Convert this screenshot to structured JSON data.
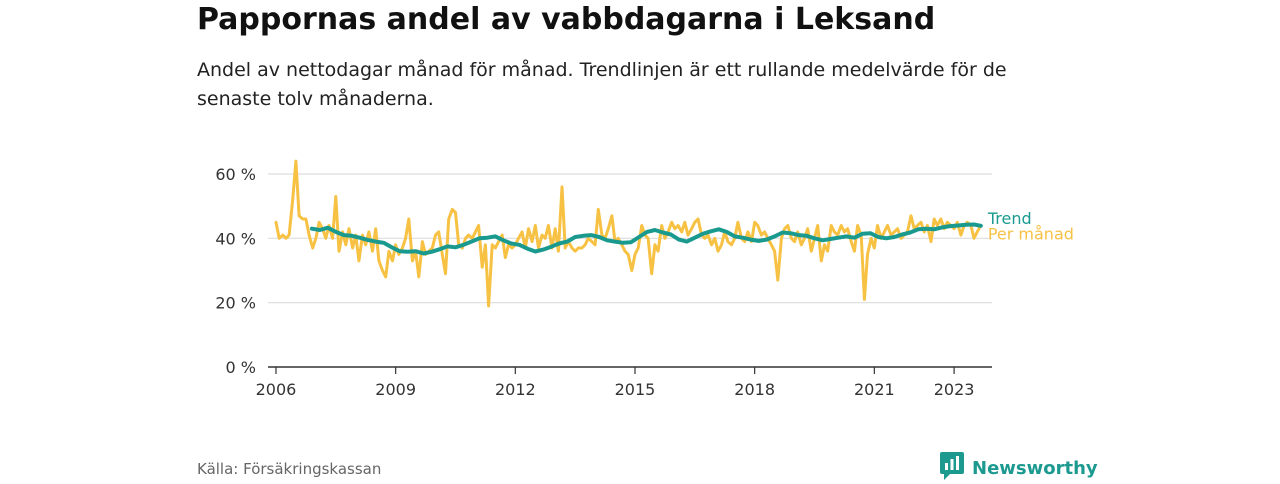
{
  "title": "Pappornas andel av vabbdagarna i Leksand",
  "subtitle": "Andel av nettodagar månad för månad. Trendlinjen är ett rullande medelvärde för de senaste tolv månaderna.",
  "source": "Källa: Försäkringskassan",
  "brand": {
    "name": "Newsworthy",
    "icon": "newsworthy-chart-icon",
    "color": "#1c9a90"
  },
  "chart_data": {
    "type": "line",
    "title": "Pappornas andel av vabbdagarna i Leksand",
    "xlabel": "",
    "ylabel": "",
    "x_range": [
      2005.8,
      2023.95
    ],
    "ylim": [
      0,
      60
    ],
    "x_ticks": [
      {
        "value": 2006,
        "label": "2006"
      },
      {
        "value": 2009,
        "label": "2009"
      },
      {
        "value": 2012,
        "label": "2012"
      },
      {
        "value": 2015,
        "label": "2015"
      },
      {
        "value": 2018,
        "label": "2018"
      },
      {
        "value": 2021,
        "label": "2021"
      },
      {
        "value": 2023,
        "label": "2023"
      }
    ],
    "y_ticks": [
      {
        "value": 0,
        "label": "0 %"
      },
      {
        "value": 20,
        "label": "20 %"
      },
      {
        "value": 40,
        "label": "40 %"
      },
      {
        "value": 60,
        "label": "60 %"
      }
    ],
    "grid": true,
    "legend": "inline labels at line ends",
    "series": [
      {
        "name": "Per månad",
        "color": "#f7c244",
        "points": [
          [
            2006.0,
            45
          ],
          [
            2006.08,
            40
          ],
          [
            2006.17,
            41
          ],
          [
            2006.25,
            40
          ],
          [
            2006.33,
            41
          ],
          [
            2006.42,
            52
          ],
          [
            2006.5,
            64
          ],
          [
            2006.58,
            47
          ],
          [
            2006.67,
            46
          ],
          [
            2006.75,
            46
          ],
          [
            2006.83,
            41
          ],
          [
            2006.92,
            37
          ],
          [
            2007.0,
            40
          ],
          [
            2007.08,
            45
          ],
          [
            2007.17,
            43
          ],
          [
            2007.25,
            40
          ],
          [
            2007.33,
            44
          ],
          [
            2007.42,
            40
          ],
          [
            2007.5,
            53
          ],
          [
            2007.58,
            36
          ],
          [
            2007.67,
            42
          ],
          [
            2007.75,
            38
          ],
          [
            2007.83,
            43
          ],
          [
            2007.92,
            37
          ],
          [
            2008.0,
            41
          ],
          [
            2008.08,
            33
          ],
          [
            2008.17,
            41
          ],
          [
            2008.25,
            38
          ],
          [
            2008.33,
            42
          ],
          [
            2008.42,
            36
          ],
          [
            2008.5,
            43
          ],
          [
            2008.58,
            33
          ],
          [
            2008.67,
            30
          ],
          [
            2008.75,
            28
          ],
          [
            2008.83,
            36
          ],
          [
            2008.92,
            33
          ],
          [
            2009.0,
            38
          ],
          [
            2009.08,
            35
          ],
          [
            2009.17,
            37
          ],
          [
            2009.25,
            40
          ],
          [
            2009.33,
            46
          ],
          [
            2009.42,
            33
          ],
          [
            2009.5,
            36
          ],
          [
            2009.58,
            28
          ],
          [
            2009.67,
            39
          ],
          [
            2009.75,
            35
          ],
          [
            2009.83,
            36
          ],
          [
            2009.92,
            37
          ],
          [
            2010.0,
            41
          ],
          [
            2010.08,
            42
          ],
          [
            2010.17,
            35
          ],
          [
            2010.25,
            29
          ],
          [
            2010.33,
            46
          ],
          [
            2010.42,
            49
          ],
          [
            2010.5,
            48
          ],
          [
            2010.58,
            38
          ],
          [
            2010.67,
            37
          ],
          [
            2010.75,
            40
          ],
          [
            2010.83,
            41
          ],
          [
            2010.92,
            40
          ],
          [
            2011.0,
            42
          ],
          [
            2011.08,
            44
          ],
          [
            2011.17,
            31
          ],
          [
            2011.25,
            38
          ],
          [
            2011.33,
            19
          ],
          [
            2011.42,
            38
          ],
          [
            2011.5,
            37
          ],
          [
            2011.58,
            39
          ],
          [
            2011.67,
            41
          ],
          [
            2011.75,
            34
          ],
          [
            2011.83,
            38
          ],
          [
            2011.92,
            37
          ],
          [
            2012.0,
            38
          ],
          [
            2012.08,
            40
          ],
          [
            2012.17,
            42
          ],
          [
            2012.25,
            37
          ],
          [
            2012.33,
            43
          ],
          [
            2012.42,
            39
          ],
          [
            2012.5,
            44
          ],
          [
            2012.58,
            37
          ],
          [
            2012.67,
            41
          ],
          [
            2012.75,
            40
          ],
          [
            2012.83,
            44
          ],
          [
            2012.92,
            37
          ],
          [
            2013.0,
            43
          ],
          [
            2013.08,
            36
          ],
          [
            2013.17,
            56
          ],
          [
            2013.25,
            37
          ],
          [
            2013.33,
            39
          ],
          [
            2013.42,
            37
          ],
          [
            2013.5,
            36
          ],
          [
            2013.58,
            37
          ],
          [
            2013.67,
            37
          ],
          [
            2013.75,
            38
          ],
          [
            2013.83,
            40
          ],
          [
            2013.92,
            39
          ],
          [
            2014.0,
            38
          ],
          [
            2014.08,
            49
          ],
          [
            2014.17,
            41
          ],
          [
            2014.25,
            40
          ],
          [
            2014.33,
            43
          ],
          [
            2014.42,
            47
          ],
          [
            2014.5,
            39
          ],
          [
            2014.58,
            40
          ],
          [
            2014.67,
            38
          ],
          [
            2014.75,
            36
          ],
          [
            2014.83,
            35
          ],
          [
            2014.92,
            30
          ],
          [
            2015.0,
            35
          ],
          [
            2015.08,
            37
          ],
          [
            2015.17,
            44
          ],
          [
            2015.25,
            41
          ],
          [
            2015.33,
            40
          ],
          [
            2015.42,
            29
          ],
          [
            2015.5,
            38
          ],
          [
            2015.58,
            36
          ],
          [
            2015.67,
            44
          ],
          [
            2015.75,
            40
          ],
          [
            2015.83,
            42
          ],
          [
            2015.92,
            45
          ],
          [
            2016.0,
            43
          ],
          [
            2016.08,
            44
          ],
          [
            2016.17,
            42
          ],
          [
            2016.25,
            45
          ],
          [
            2016.33,
            41
          ],
          [
            2016.42,
            43
          ],
          [
            2016.5,
            45
          ],
          [
            2016.58,
            46
          ],
          [
            2016.67,
            41
          ],
          [
            2016.75,
            40
          ],
          [
            2016.83,
            41
          ],
          [
            2016.92,
            38
          ],
          [
            2017.0,
            40
          ],
          [
            2017.08,
            36
          ],
          [
            2017.17,
            38
          ],
          [
            2017.25,
            42
          ],
          [
            2017.33,
            39
          ],
          [
            2017.42,
            38
          ],
          [
            2017.5,
            40
          ],
          [
            2017.58,
            45
          ],
          [
            2017.67,
            40
          ],
          [
            2017.75,
            39
          ],
          [
            2017.83,
            42
          ],
          [
            2017.92,
            39
          ],
          [
            2018.0,
            45
          ],
          [
            2018.08,
            44
          ],
          [
            2018.17,
            41
          ],
          [
            2018.25,
            42
          ],
          [
            2018.33,
            40
          ],
          [
            2018.42,
            38
          ],
          [
            2018.5,
            36
          ],
          [
            2018.58,
            27
          ],
          [
            2018.67,
            40
          ],
          [
            2018.75,
            43
          ],
          [
            2018.83,
            44
          ],
          [
            2018.92,
            40
          ],
          [
            2019.0,
            39
          ],
          [
            2019.08,
            42
          ],
          [
            2019.17,
            38
          ],
          [
            2019.25,
            40
          ],
          [
            2019.33,
            43
          ],
          [
            2019.42,
            36
          ],
          [
            2019.5,
            40
          ],
          [
            2019.58,
            44
          ],
          [
            2019.67,
            33
          ],
          [
            2019.75,
            38
          ],
          [
            2019.83,
            36
          ],
          [
            2019.92,
            44
          ],
          [
            2020.0,
            42
          ],
          [
            2020.08,
            41
          ],
          [
            2020.17,
            44
          ],
          [
            2020.25,
            42
          ],
          [
            2020.33,
            43
          ],
          [
            2020.42,
            39
          ],
          [
            2020.5,
            36
          ],
          [
            2020.58,
            44
          ],
          [
            2020.67,
            41
          ],
          [
            2020.75,
            21
          ],
          [
            2020.83,
            35
          ],
          [
            2020.92,
            40
          ],
          [
            2021.0,
            37
          ],
          [
            2021.08,
            44
          ],
          [
            2021.17,
            40
          ],
          [
            2021.25,
            42
          ],
          [
            2021.33,
            44
          ],
          [
            2021.42,
            41
          ],
          [
            2021.5,
            42
          ],
          [
            2021.58,
            43
          ],
          [
            2021.67,
            40
          ],
          [
            2021.75,
            41
          ],
          [
            2021.83,
            42
          ],
          [
            2021.92,
            47
          ],
          [
            2022.0,
            43
          ],
          [
            2022.08,
            44
          ],
          [
            2022.17,
            45
          ],
          [
            2022.25,
            42
          ],
          [
            2022.33,
            44
          ],
          [
            2022.42,
            39
          ],
          [
            2022.5,
            46
          ],
          [
            2022.58,
            44
          ],
          [
            2022.67,
            46
          ],
          [
            2022.75,
            43
          ],
          [
            2022.83,
            45
          ],
          [
            2022.92,
            44
          ],
          [
            2023.0,
            43
          ],
          [
            2023.08,
            45
          ],
          [
            2023.17,
            41
          ],
          [
            2023.25,
            44
          ],
          [
            2023.33,
            45
          ],
          [
            2023.42,
            44
          ],
          [
            2023.5,
            40
          ],
          [
            2023.58,
            42
          ],
          [
            2023.67,
            44
          ]
        ]
      },
      {
        "name": "Trend",
        "color": "#1a9a8f",
        "points": [
          [
            2006.9,
            43
          ],
          [
            2007.1,
            42.6
          ],
          [
            2007.3,
            43.3
          ],
          [
            2007.5,
            42
          ],
          [
            2007.7,
            41
          ],
          [
            2007.9,
            40.8
          ],
          [
            2008.1,
            40.2
          ],
          [
            2008.3,
            39.5
          ],
          [
            2008.5,
            39
          ],
          [
            2008.7,
            38.6
          ],
          [
            2008.9,
            37.2
          ],
          [
            2009.1,
            36
          ],
          [
            2009.3,
            35.8
          ],
          [
            2009.5,
            36
          ],
          [
            2009.7,
            35.3
          ],
          [
            2009.9,
            35.8
          ],
          [
            2010.1,
            36.6
          ],
          [
            2010.3,
            37.5
          ],
          [
            2010.5,
            37.2
          ],
          [
            2010.7,
            38
          ],
          [
            2010.9,
            39
          ],
          [
            2011.1,
            40
          ],
          [
            2011.3,
            40.2
          ],
          [
            2011.5,
            40.6
          ],
          [
            2011.7,
            39.4
          ],
          [
            2011.9,
            38.4
          ],
          [
            2012.1,
            38
          ],
          [
            2012.3,
            36.8
          ],
          [
            2012.5,
            35.9
          ],
          [
            2012.7,
            36.5
          ],
          [
            2012.9,
            37.4
          ],
          [
            2013.1,
            38.4
          ],
          [
            2013.3,
            39
          ],
          [
            2013.5,
            40.4
          ],
          [
            2013.7,
            40.8
          ],
          [
            2013.9,
            41
          ],
          [
            2014.1,
            40.4
          ],
          [
            2014.3,
            39.4
          ],
          [
            2014.5,
            39
          ],
          [
            2014.7,
            38.6
          ],
          [
            2014.9,
            38.8
          ],
          [
            2015.1,
            40.4
          ],
          [
            2015.3,
            42
          ],
          [
            2015.5,
            42.6
          ],
          [
            2015.7,
            41.8
          ],
          [
            2015.9,
            41.2
          ],
          [
            2016.1,
            39.6
          ],
          [
            2016.3,
            39
          ],
          [
            2016.5,
            40.2
          ],
          [
            2016.7,
            41.4
          ],
          [
            2016.9,
            42.2
          ],
          [
            2017.1,
            42.8
          ],
          [
            2017.3,
            42
          ],
          [
            2017.5,
            40.6
          ],
          [
            2017.7,
            40.2
          ],
          [
            2017.9,
            39.6
          ],
          [
            2018.1,
            39.2
          ],
          [
            2018.3,
            39.6
          ],
          [
            2018.5,
            40.6
          ],
          [
            2018.7,
            41.8
          ],
          [
            2018.9,
            41.6
          ],
          [
            2019.1,
            41
          ],
          [
            2019.3,
            40.8
          ],
          [
            2019.5,
            40
          ],
          [
            2019.7,
            39.4
          ],
          [
            2019.9,
            39.8
          ],
          [
            2020.1,
            40.2
          ],
          [
            2020.3,
            40.6
          ],
          [
            2020.5,
            40.2
          ],
          [
            2020.7,
            41.4
          ],
          [
            2020.9,
            41.6
          ],
          [
            2021.1,
            40.4
          ],
          [
            2021.3,
            40
          ],
          [
            2021.5,
            40.4
          ],
          [
            2021.7,
            41.2
          ],
          [
            2021.9,
            41.8
          ],
          [
            2022.1,
            42.8
          ],
          [
            2022.3,
            43
          ],
          [
            2022.5,
            42.8
          ],
          [
            2022.7,
            43.4
          ],
          [
            2022.9,
            43.8
          ],
          [
            2023.1,
            44
          ],
          [
            2023.3,
            44.2
          ],
          [
            2023.5,
            44.3
          ],
          [
            2023.67,
            43.9
          ]
        ]
      }
    ]
  }
}
